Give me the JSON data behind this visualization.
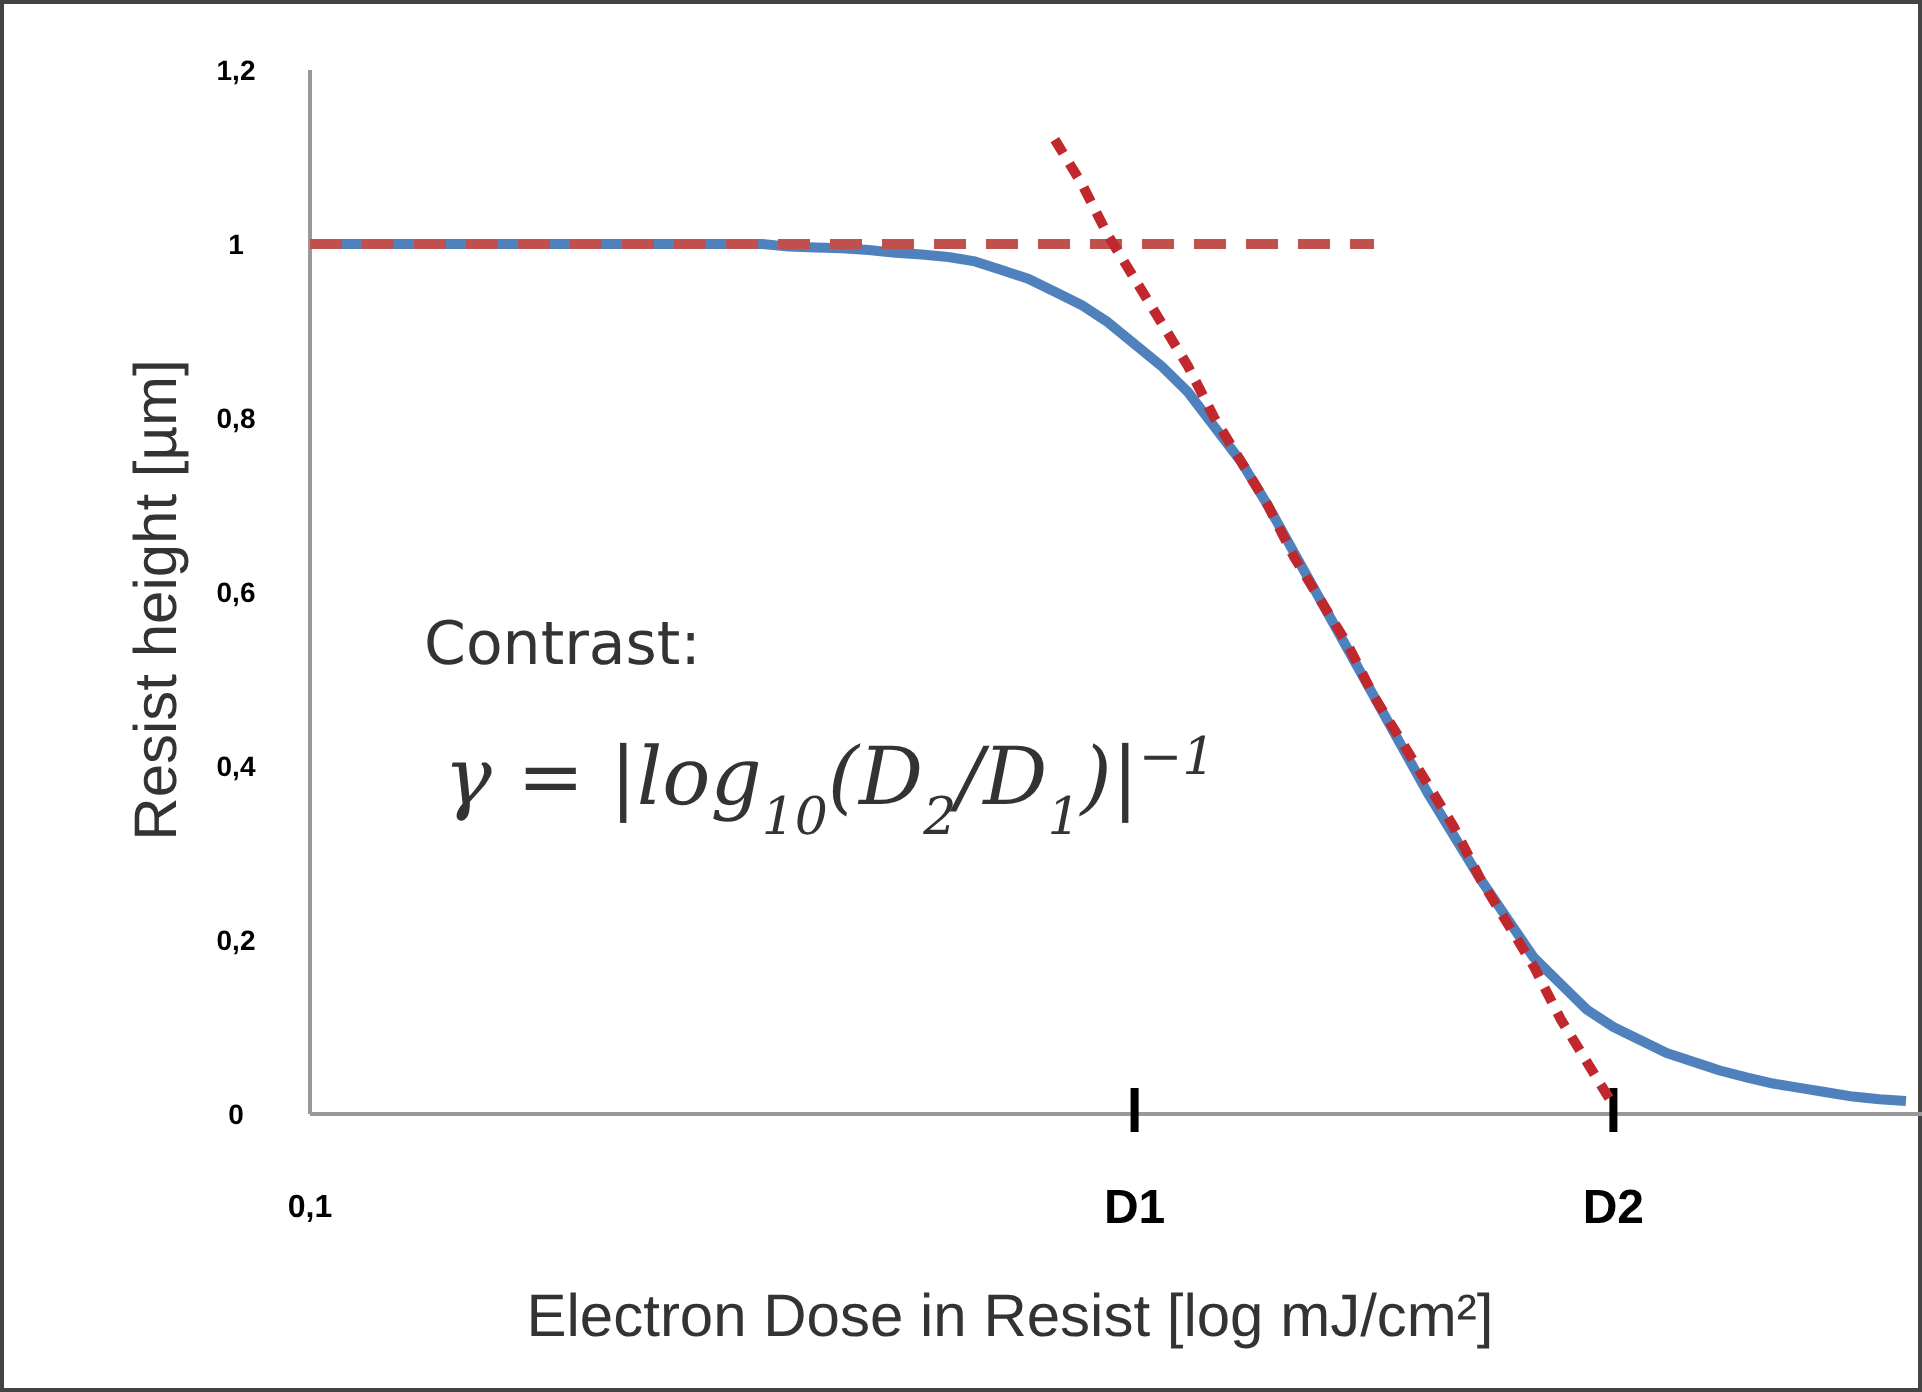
{
  "chart_data": {
    "type": "line",
    "xlabel": "Electron Dose in Resist [log mJ/cm²]",
    "ylabel": "Resist height [µm]",
    "categories": [
      "0,1",
      null,
      null,
      null,
      null,
      null,
      null,
      null,
      null,
      null,
      null,
      null,
      null,
      null,
      null,
      null,
      null,
      null,
      null,
      null,
      null,
      null,
      null,
      null,
      null,
      null,
      null,
      null,
      null,
      null,
      null,
      "D1",
      null,
      null,
      null,
      null,
      null,
      null,
      null,
      null,
      null,
      null,
      null,
      null,
      null,
      null,
      null,
      null,
      null,
      "D2",
      null,
      null,
      null,
      null,
      null,
      null,
      null,
      null,
      null,
      null,
      null
    ],
    "ylim": [
      0,
      1.2
    ],
    "yticks": [
      0,
      {
        "value": 0.2,
        "label": "0,2"
      },
      {
        "value": 0.4,
        "label": "0,4"
      },
      {
        "value": 0.6,
        "label": "0,6"
      },
      {
        "value": 0.8,
        "label": "0,8"
      },
      1,
      {
        "value": 1.2,
        "label": "1,2"
      }
    ],
    "grid": false,
    "marker": "none",
    "series": [
      {
        "color": "#4f81bd",
        "line_style": "solid",
        "values": [
          1,
          1,
          1,
          1,
          1,
          1,
          1,
          1,
          1,
          1,
          1,
          1,
          1,
          1,
          1,
          1,
          1,
          1,
          0.997,
          0.996,
          0.995,
          0.993,
          0.99,
          0.988,
          0.985,
          0.98,
          0.97,
          0.96,
          0.945,
          0.93,
          0.91,
          0.885,
          0.86,
          0.83,
          0.79,
          0.75,
          0.7,
          0.645,
          0.59,
          0.535,
          0.48,
          0.425,
          0.37,
          0.32,
          0.27,
          0.225,
          0.18,
          0.15,
          0.12,
          0.1,
          0.085,
          0.07,
          0.06,
          0.05,
          0.042,
          0.035,
          0.03,
          0.025,
          0.02,
          0.017,
          0.015
        ]
      },
      {
        "color": "#c0504d",
        "line_style": "dashed",
        "values": [
          1,
          1,
          1,
          1,
          1,
          1,
          1,
          1,
          1,
          1,
          1,
          1,
          1,
          1,
          1,
          1,
          1,
          1,
          1,
          1,
          1,
          1,
          1,
          1,
          1,
          1,
          1,
          1,
          1,
          1,
          1,
          1,
          1,
          1,
          1,
          1,
          1,
          1,
          1,
          1,
          1,
          null,
          null,
          null,
          null,
          null,
          null,
          null,
          null,
          null,
          null,
          null,
          null,
          null,
          null,
          null,
          null,
          null,
          null,
          null,
          null
        ]
      },
      {
        "color": "#c0282d",
        "line_style": "dotted",
        "values": [
          null,
          null,
          null,
          null,
          null,
          null,
          null,
          null,
          null,
          null,
          null,
          null,
          null,
          null,
          null,
          null,
          null,
          null,
          null,
          null,
          null,
          null,
          null,
          null,
          null,
          null,
          null,
          null,
          1.12,
          1.07,
          1.01,
          0.96,
          0.91,
          0.86,
          0.8,
          0.75,
          0.7,
          0.64,
          0.59,
          0.54,
          0.48,
          0.43,
          0.38,
          0.33,
          0.27,
          0.22,
          0.17,
          0.11,
          0.06,
          0.01,
          null,
          null,
          null,
          null,
          null,
          null,
          null,
          null,
          null,
          null,
          null
        ]
      }
    ],
    "annotations": [
      "Contrast:",
      "γ = |log$_{10}$(D$_{2}$/D$_{1}$)|$^{−1}$"
    ]
  }
}
